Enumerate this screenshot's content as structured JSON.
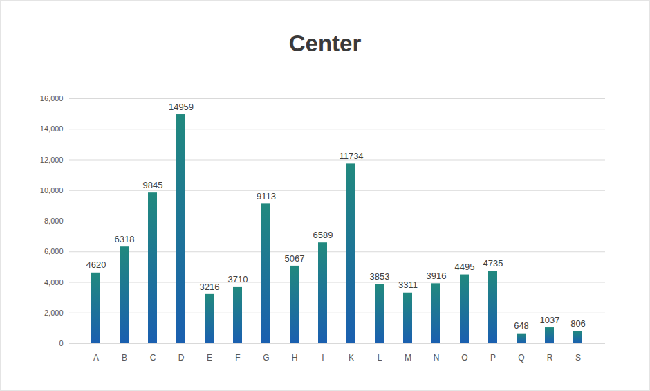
{
  "chart_data": {
    "type": "bar",
    "title": "Center",
    "categories": [
      "A",
      "B",
      "C",
      "D",
      "E",
      "F",
      "G",
      "H",
      "I",
      "K",
      "L",
      "M",
      "N",
      "O",
      "P",
      "Q",
      "R",
      "S"
    ],
    "values": [
      4620,
      6318,
      9845,
      14959,
      3216,
      3710,
      9113,
      5067,
      6589,
      11734,
      3853,
      3311,
      3916,
      4495,
      4735,
      648,
      1037,
      806
    ],
    "color": "#21897e",
    "ylim": [
      0,
      16000
    ],
    "yticks": [
      0,
      2000,
      4000,
      6000,
      8000,
      10000,
      12000,
      14000,
      16000
    ],
    "grid": true,
    "data_labels": true
  }
}
